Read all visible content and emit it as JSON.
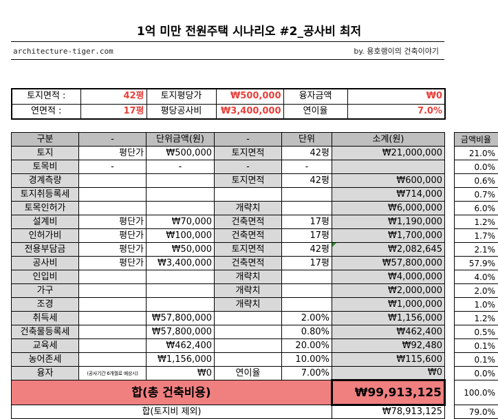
{
  "title": "1억 미만 전원주택 시나리오 #2_공사비 최저",
  "site": "architecture-tiger.com",
  "byline": "by. 용호랭이의 건축이야기",
  "summary": {
    "row1": [
      "토지면적 :",
      "42평",
      "토지평당가",
      "₩500,000",
      "융자금액",
      "₩0"
    ],
    "row2": [
      "연면적 :",
      "17평",
      "평당공사비",
      "₩3,400,000",
      "연이율",
      "7.0%"
    ]
  },
  "header": [
    "구분",
    "-",
    "단위금액(원)",
    "-",
    "단위",
    "소계(원)"
  ],
  "ratio_header": "금액비율",
  "rows": [
    [
      "토지",
      "평단가",
      "₩500,000",
      "토지면적",
      "42평",
      "₩21,000,000"
    ],
    [
      "토목비",
      "-",
      "-",
      "-",
      "-",
      ""
    ],
    [
      "경계측량",
      "",
      "",
      "토지면적",
      "42평",
      "₩600,000"
    ],
    [
      "토지취등록세",
      "",
      "",
      "",
      "",
      "₩714,000"
    ],
    [
      "토목인허가",
      "",
      "",
      "개략치",
      "",
      "₩6,000,000"
    ],
    [
      "설계비",
      "평단가",
      "₩70,000",
      "건축면적",
      "17평",
      "₩1,190,000"
    ],
    [
      "인허가비",
      "평단가",
      "₩100,000",
      "건축면적",
      "17평",
      "₩1,700,000"
    ],
    [
      "전용부담금",
      "평단가",
      "₩50,000",
      "토지면적",
      "42평",
      "₩2,082,645"
    ],
    [
      "공사비",
      "평단가",
      "₩3,400,000",
      "건축면적",
      "17평",
      "₩57,800,000"
    ],
    [
      "인입비",
      "",
      "",
      "개략치",
      "",
      "₩4,000,000"
    ],
    [
      "가구",
      "",
      "",
      "개략치",
      "",
      "₩2,000,000"
    ],
    [
      "조경",
      "",
      "",
      "개략치",
      "",
      "₩1,000,000"
    ],
    [
      "취득세",
      "",
      "₩57,800,000",
      "",
      "2.00%",
      "₩1,156,000"
    ],
    [
      "건축물등록세",
      "",
      "₩57,800,000",
      "",
      "0.80%",
      "₩462,400"
    ],
    [
      "교육세",
      "",
      "₩462,400",
      "",
      "20.00%",
      "₩92,480"
    ],
    [
      "농어존세",
      "",
      "₩1,156,000",
      "",
      "10.00%",
      "₩115,600"
    ],
    [
      "융자",
      "(공사기간 6개월로 예상시)",
      "₩0",
      "연이율",
      "7.00%",
      "₩0"
    ]
  ],
  "ratios": [
    "21.0%",
    "0.0%",
    "0.6%",
    "0.7%",
    "6.0%",
    "1.2%",
    "1.7%",
    "2.1%",
    "57.9%",
    "4.0%",
    "2.0%",
    "1.0%",
    "1.2%",
    "0.5%",
    "0.1%",
    "0.1%",
    "0.0%"
  ],
  "total": {
    "label": "합(총 건축비용)",
    "value": "₩99,913,125",
    "ratio": "100.0%"
  },
  "subtotal": {
    "label": "합(토지비 제외)",
    "value": "₩78,913,125",
    "ratio": "79.0%"
  }
}
